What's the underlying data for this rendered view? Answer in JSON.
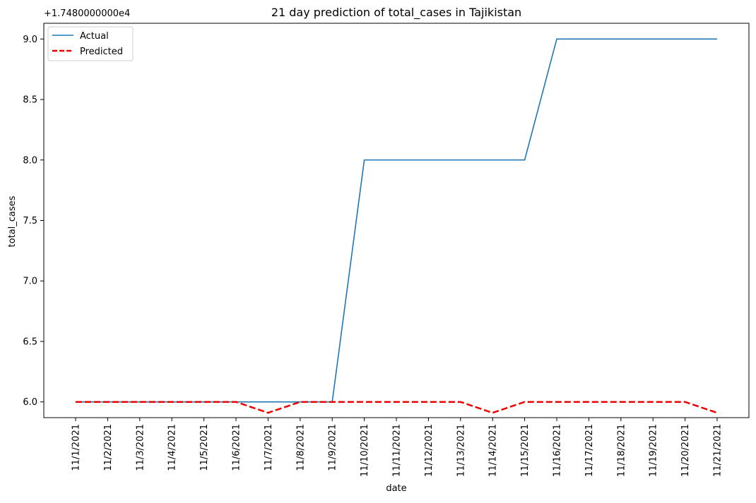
{
  "chart_data": {
    "type": "line",
    "title": "21 day prediction of total_cases in Tajikistan",
    "xlabel": "date",
    "ylabel": "total_cases",
    "offset_label": "+1.7480000000e4",
    "categories": [
      "11/1/2021",
      "11/2/2021",
      "11/3/2021",
      "11/4/2021",
      "11/5/2021",
      "11/6/2021",
      "11/7/2021",
      "11/8/2021",
      "11/9/2021",
      "11/10/2021",
      "11/11/2021",
      "11/12/2021",
      "11/13/2021",
      "11/14/2021",
      "11/15/2021",
      "11/16/2021",
      "11/17/2021",
      "11/18/2021",
      "11/19/2021",
      "11/20/2021",
      "11/21/2021"
    ],
    "y_ticks": [
      6.0,
      6.5,
      7.0,
      7.5,
      8.0,
      8.5,
      9.0
    ],
    "ylim": [
      5.87,
      9.13
    ],
    "grid": false,
    "legend_position": "top-left",
    "series": [
      {
        "name": "Actual",
        "color": "#1f77b4",
        "style": "solid",
        "values": [
          6,
          6,
          6,
          6,
          6,
          6,
          6,
          6,
          6,
          8,
          8,
          8,
          8,
          8,
          8,
          9,
          9,
          9,
          9,
          9,
          9
        ]
      },
      {
        "name": "Predicted",
        "color": "#ee0000",
        "style": "dashed",
        "values": [
          6,
          6,
          6,
          6,
          6,
          6,
          5.91,
          6,
          6,
          6,
          6,
          6,
          6,
          5.91,
          6,
          6,
          6,
          6,
          6,
          6,
          5.91
        ]
      }
    ]
  }
}
